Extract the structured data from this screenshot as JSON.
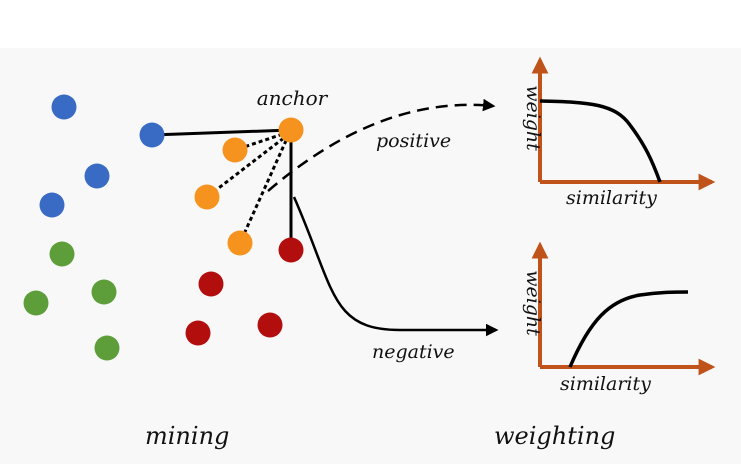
{
  "labels": {
    "anchor": "anchor",
    "positive": "positive",
    "negative": "negative",
    "mining": "mining",
    "weighting": "weighting"
  },
  "plots": {
    "top": {
      "ylabel": "weight",
      "xlabel": "similarity"
    },
    "bottom": {
      "ylabel": "weight",
      "xlabel": "similarity"
    }
  },
  "colors": {
    "blue": "#3a6bc4",
    "green": "#5e9e3a",
    "orange": "#f6921e",
    "red": "#b30e0e",
    "axis": "#c0531a",
    "line": "#000000",
    "background": "#f8f8f8"
  }
}
